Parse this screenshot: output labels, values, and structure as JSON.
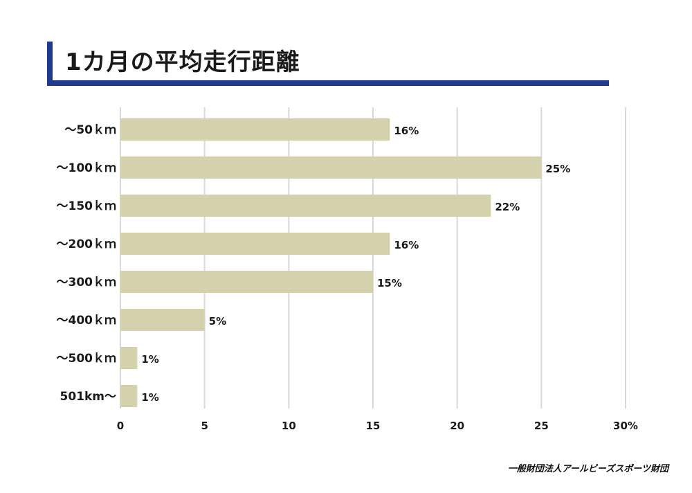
{
  "title": "1カ月の平均走行距離",
  "footer": "一般財団法人アールビーズスポーツ財団",
  "colors": {
    "accent": "#1f3a8f",
    "bar": "#d6d1ad",
    "grid": "#d9d9d9",
    "text": "#1a1a1a"
  },
  "chart_data": {
    "type": "bar",
    "orientation": "horizontal",
    "categories": [
      "〜50ｋｍ",
      "〜100ｋｍ",
      "〜150ｋｍ",
      "〜200ｋｍ",
      "〜300ｋｍ",
      "〜400ｋｍ",
      "〜500ｋｍ",
      "501km〜"
    ],
    "values": [
      16,
      25,
      22,
      16,
      15,
      5,
      1,
      1
    ],
    "data_labels": [
      "16%",
      "25%",
      "22%",
      "16%",
      "15%",
      "5%",
      "1%",
      "1%"
    ],
    "xticks": [
      0,
      5,
      10,
      15,
      20,
      25,
      30
    ],
    "xtick_labels": [
      "0",
      "5",
      "10",
      "15",
      "20",
      "25",
      "30%"
    ],
    "xlim": [
      0,
      30
    ],
    "grid": true,
    "legend": "none"
  }
}
